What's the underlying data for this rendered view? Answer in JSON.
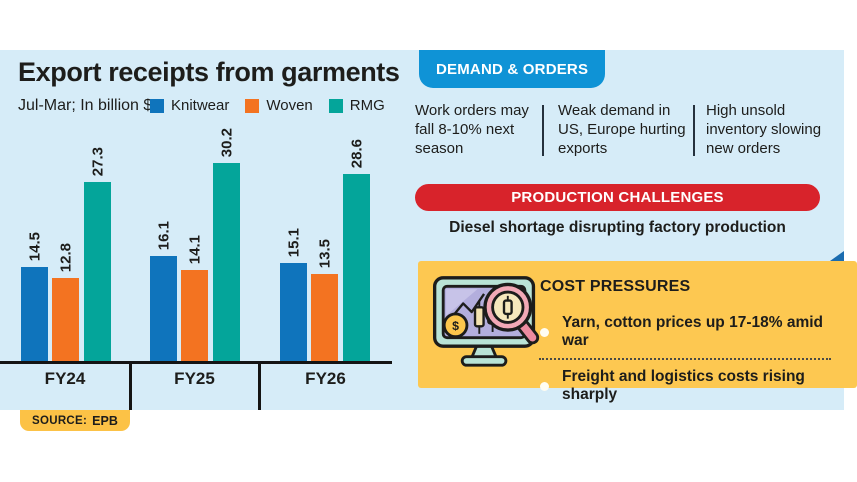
{
  "chart_data": {
    "type": "bar",
    "title": "Export receipts from garments",
    "subtitle": "Jul-Mar; In billion $",
    "categories": [
      "FY24",
      "FY25",
      "FY26"
    ],
    "series": [
      {
        "name": "Knitwear",
        "color": "#0f74bc",
        "values": [
          14.5,
          16.1,
          15.1
        ]
      },
      {
        "name": "Woven",
        "color": "#f37321",
        "values": [
          12.8,
          14.1,
          13.5
        ]
      },
      {
        "name": "RMG",
        "color": "#04a59a",
        "values": [
          27.3,
          30.2,
          28.6
        ]
      }
    ],
    "ylim": [
      0,
      32
    ],
    "grid": false,
    "legend_position": "top",
    "value_labels": "rotated-90"
  },
  "demand": {
    "header": "DEMAND & ORDERS",
    "items": [
      "Work orders may fall 8-10% next season",
      "Weak demand in US, Europe hurting exports",
      "High unsold inventory slowing new orders"
    ]
  },
  "production": {
    "header": "PRODUCTION CHALLENGES",
    "note": "Diesel shortage disrupting factory production"
  },
  "cost": {
    "header": "COST PRESSURES",
    "icon": "monitor-chart-magnifier-icon",
    "items": [
      "Yarn, cotton prices up 17-18% amid war",
      "Freight and logistics costs rising sharply"
    ]
  },
  "source": {
    "prefix": "SOURCE:",
    "value": "EPB"
  },
  "colors": {
    "panel_blue": "#d6ecf8",
    "knitwear_blue": "#0f74bc",
    "woven_orange": "#f37321",
    "rmg_teal": "#04a59a",
    "demand_pill_blue": "#0f93d6",
    "production_pill_red": "#d8232b",
    "cost_box_yellow": "#fdc851",
    "fold_blue": "#1a6cb0",
    "source_badge_yellow": "#fcc246",
    "text_dark": "#1d1d1b"
  }
}
